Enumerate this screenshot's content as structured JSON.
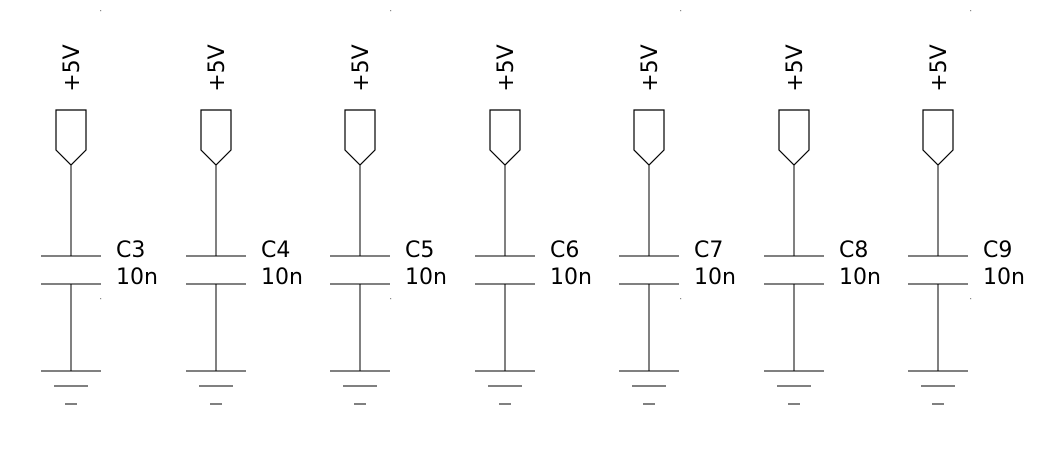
{
  "schematic": {
    "stroke_color": "#000000",
    "background": "#ffffff",
    "grid_dot_color": "#8a8a8a",
    "components": [
      {
        "ref": "C3",
        "value": "10n",
        "supply": "+5V",
        "gnd_symbol": "ground"
      },
      {
        "ref": "C4",
        "value": "10n",
        "supply": "+5V",
        "gnd_symbol": "ground"
      },
      {
        "ref": "C5",
        "value": "10n",
        "supply": "+5V",
        "gnd_symbol": "ground"
      },
      {
        "ref": "C6",
        "value": "10n",
        "supply": "+5V",
        "gnd_symbol": "ground"
      },
      {
        "ref": "C7",
        "value": "10n",
        "supply": "+5V",
        "gnd_symbol": "ground"
      },
      {
        "ref": "C8",
        "value": "10n",
        "supply": "+5V",
        "gnd_symbol": "ground"
      },
      {
        "ref": "C9",
        "value": "10n",
        "supply": "+5V",
        "gnd_symbol": "ground"
      }
    ]
  }
}
